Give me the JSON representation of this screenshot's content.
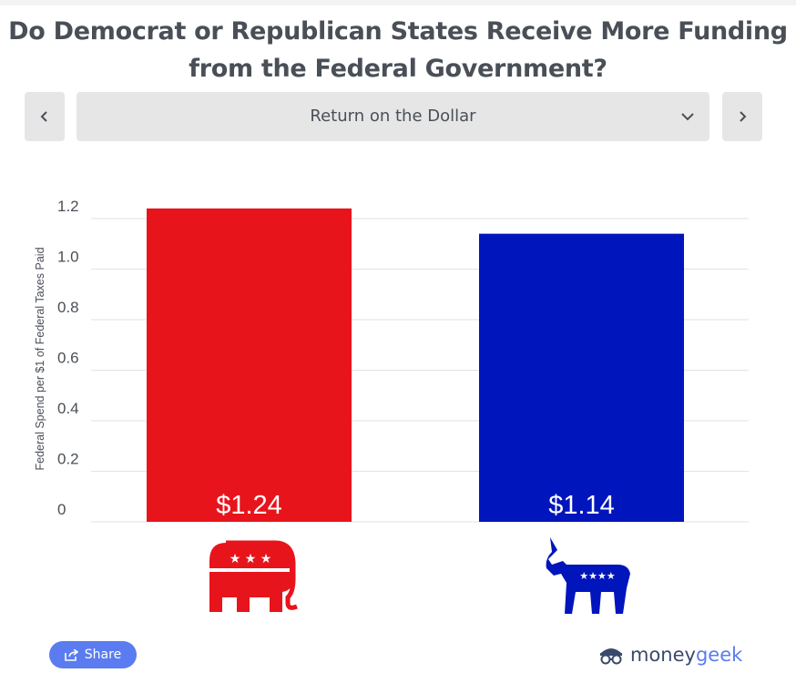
{
  "title": {
    "line1": "Do Democrat or Republican States Receive More Funding",
    "line2": "from the Federal Government?"
  },
  "nav": {
    "prev_icon": "chevron-left-icon",
    "next_icon": "chevron-right-icon",
    "dropdown_selected": "Return on the Dollar",
    "dropdown_icon": "chevron-down-icon"
  },
  "chart_data": {
    "type": "bar",
    "title": "",
    "xlabel": "",
    "ylabel": "Federal Spend per $1 of Federal Taxes Paid",
    "ylim": [
      0,
      1.2
    ],
    "y_ticks": [
      "0",
      "0.2",
      "0.4",
      "0.6",
      "0.8",
      "1.0",
      "1.2"
    ],
    "categories": [
      "Republican",
      "Democrat"
    ],
    "values": [
      1.24,
      1.14
    ],
    "data_labels": [
      "$1.24",
      "$1.14"
    ],
    "colors": [
      "#e8141c",
      "#0015bc"
    ],
    "category_icons": [
      "republican-elephant-icon",
      "democrat-donkey-icon"
    ],
    "grid": true
  },
  "footer": {
    "share_label": "Share",
    "share_icon": "share-icon",
    "brand_prefix": "money",
    "brand_suffix": "geek",
    "brand_icon": "moneygeek-logo-icon"
  }
}
